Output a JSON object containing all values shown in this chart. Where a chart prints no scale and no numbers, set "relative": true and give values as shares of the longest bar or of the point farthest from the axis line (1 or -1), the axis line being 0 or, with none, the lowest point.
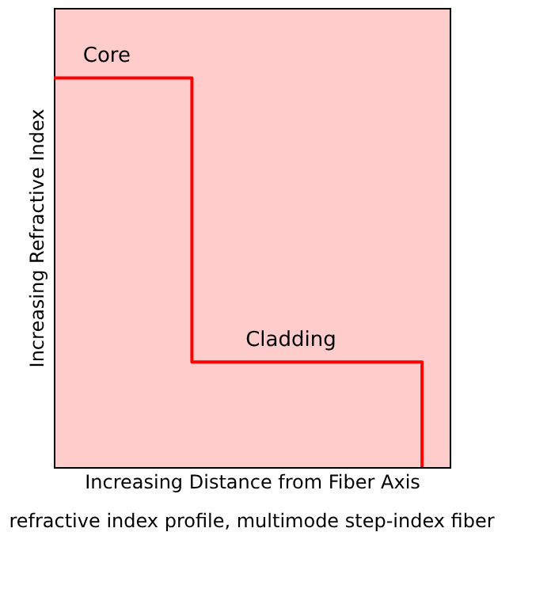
{
  "chart_data": {
    "type": "step",
    "relative": true,
    "tick_labels": false,
    "grid": false,
    "xlabel": "Increasing Distance from Fiber Axis",
    "ylabel": "Increasing Refractive Index",
    "categories": [
      null,
      null,
      null,
      null,
      null,
      null,
      null,
      null,
      null
    ],
    "series": [
      {
        "color": "#ff0000",
        "values": [
          1,
          1,
          1,
          0.27,
          0.27,
          0.27,
          0.27,
          0.27,
          0
        ]
      }
    ],
    "annotations": [
      {
        "text": "Core",
        "y": 1
      },
      {
        "text": "Cladding",
        "y": 0.27
      },
      "refractive index profile, multimode step-index fiber"
    ]
  }
}
